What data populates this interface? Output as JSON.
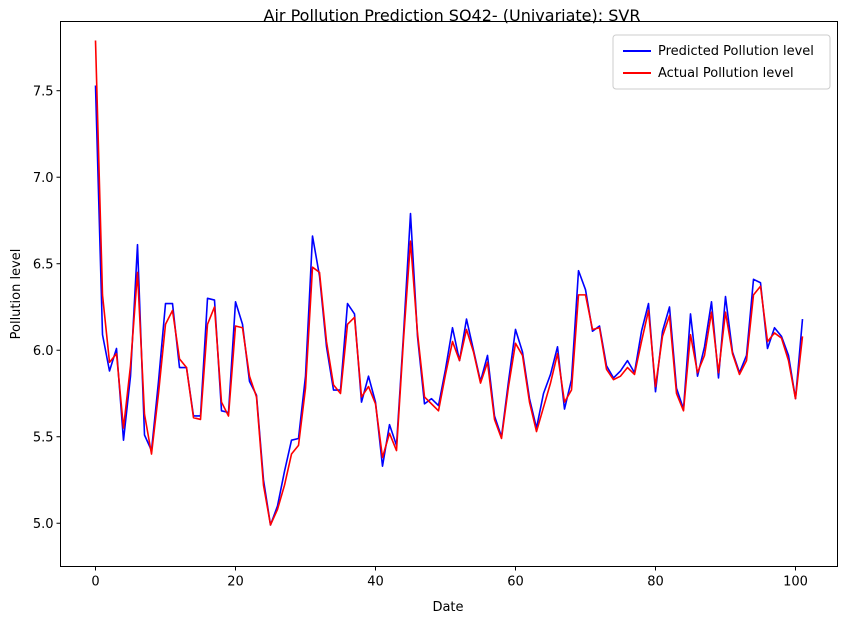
{
  "chart_data": {
    "type": "line",
    "title": "Air Pollution Prediction SO42- (Univariate): SVR",
    "xlabel": "Date",
    "ylabel": "Pollution level",
    "xlim": [
      -5,
      106
    ],
    "ylim": [
      4.75,
      7.9
    ],
    "xticks": [
      0,
      20,
      40,
      60,
      80,
      100
    ],
    "yticks": [
      5.0,
      5.5,
      6.0,
      6.5,
      7.0,
      7.5
    ],
    "grid": false,
    "legend_position": "top-right",
    "x": [
      0,
      1,
      2,
      3,
      4,
      5,
      6,
      7,
      8,
      9,
      10,
      11,
      12,
      13,
      14,
      15,
      16,
      17,
      18,
      19,
      20,
      21,
      22,
      23,
      24,
      25,
      26,
      27,
      28,
      29,
      30,
      31,
      32,
      33,
      34,
      35,
      36,
      37,
      38,
      39,
      40,
      41,
      42,
      43,
      44,
      45,
      46,
      47,
      48,
      49,
      50,
      51,
      52,
      53,
      54,
      55,
      56,
      57,
      58,
      59,
      60,
      61,
      62,
      63,
      64,
      65,
      66,
      67,
      68,
      69,
      70,
      71,
      72,
      73,
      74,
      75,
      76,
      77,
      78,
      79,
      80,
      81,
      82,
      83,
      84,
      85,
      86,
      87,
      88,
      89,
      90,
      91,
      92,
      93,
      94,
      95,
      96,
      97,
      98,
      99,
      100,
      101
    ],
    "series": [
      {
        "name": "Predicted Pollution level",
        "color": "#0000ff",
        "values": [
          7.53,
          6.09,
          5.88,
          6.01,
          5.48,
          5.85,
          6.61,
          5.51,
          5.42,
          5.82,
          6.27,
          6.27,
          5.9,
          5.9,
          5.62,
          5.62,
          6.3,
          6.29,
          5.65,
          5.64,
          6.28,
          6.15,
          5.82,
          5.74,
          5.25,
          4.99,
          5.1,
          5.3,
          5.48,
          5.49,
          5.85,
          6.66,
          6.43,
          6.02,
          5.77,
          5.77,
          6.27,
          6.21,
          5.7,
          5.85,
          5.7,
          5.33,
          5.57,
          5.45,
          6.09,
          6.79,
          6.08,
          5.69,
          5.72,
          5.68,
          5.89,
          6.13,
          5.94,
          6.18,
          6.0,
          5.82,
          5.97,
          5.62,
          5.5,
          5.82,
          6.12,
          5.99,
          5.72,
          5.55,
          5.75,
          5.86,
          6.02,
          5.66,
          5.83,
          6.46,
          6.35,
          6.11,
          6.14,
          5.91,
          5.84,
          5.88,
          5.94,
          5.87,
          6.11,
          6.27,
          5.76,
          6.11,
          6.25,
          5.78,
          5.66,
          6.21,
          5.85,
          6.02,
          6.28,
          5.84,
          6.31,
          5.99,
          5.87,
          5.97,
          6.41,
          6.39,
          6.01,
          6.13,
          6.08,
          5.97,
          5.72,
          6.18
        ]
      },
      {
        "name": "Actual Pollution level",
        "color": "#ff0000",
        "values": [
          7.79,
          6.32,
          5.93,
          5.98,
          5.55,
          5.91,
          6.45,
          5.63,
          5.4,
          5.75,
          6.15,
          6.23,
          5.95,
          5.9,
          5.61,
          5.6,
          6.15,
          6.25,
          5.7,
          5.62,
          6.14,
          6.13,
          5.85,
          5.73,
          5.22,
          4.99,
          5.08,
          5.22,
          5.4,
          5.45,
          5.78,
          6.48,
          6.45,
          6.05,
          5.8,
          5.75,
          6.15,
          6.19,
          5.73,
          5.79,
          5.69,
          5.38,
          5.52,
          5.42,
          6.06,
          6.63,
          6.1,
          5.73,
          5.69,
          5.65,
          5.86,
          6.05,
          5.94,
          6.12,
          5.99,
          5.81,
          5.93,
          5.6,
          5.49,
          5.79,
          6.04,
          5.97,
          5.7,
          5.53,
          5.67,
          5.81,
          5.98,
          5.7,
          5.77,
          6.32,
          6.32,
          6.12,
          6.13,
          5.89,
          5.83,
          5.85,
          5.9,
          5.86,
          6.05,
          6.23,
          5.79,
          6.08,
          6.2,
          5.75,
          5.65,
          6.09,
          5.87,
          5.97,
          6.22,
          5.87,
          6.22,
          5.98,
          5.86,
          5.94,
          6.32,
          6.37,
          6.05,
          6.1,
          6.07,
          5.94,
          5.72,
          6.08
        ]
      }
    ]
  }
}
